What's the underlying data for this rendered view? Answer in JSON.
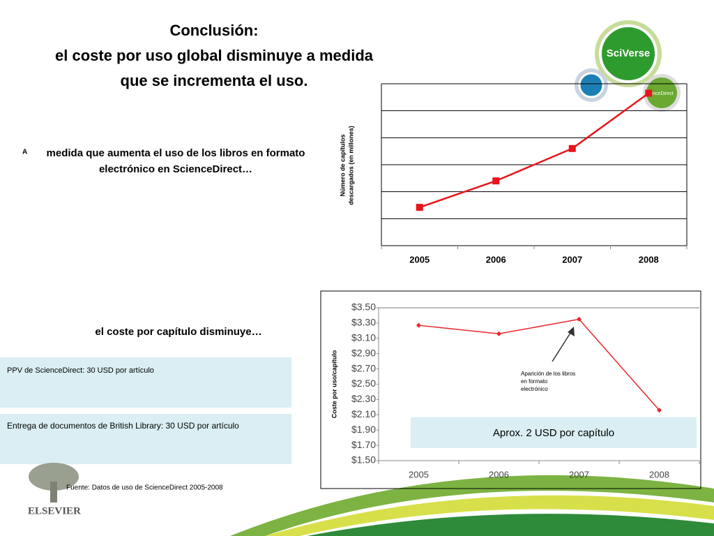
{
  "title": [
    "Conclusión:",
    "el coste por uso global disminuye a medida",
    "que se incrementa el uso."
  ],
  "intro": {
    "lead": "A",
    "lines": [
      "medida que aumenta el uso de los libros en formato",
      "electrónico en ScienceDirect…"
    ]
  },
  "subhead": "el coste por capítulo disminuye…",
  "boxes": [
    "PPV de ScienceDirect: 30 USD por artículo",
    "Entrega de documentos de British Library: 30 USD por artículo"
  ],
  "source": "Fuente: Datos de uso de ScienceDirect 2005-2008",
  "logos": {
    "sciverse": "SciVerse",
    "sciencedirect": "enceDirect",
    "elsevier": "ELSEVIER"
  },
  "chart_data": [
    {
      "type": "line",
      "ylabel": [
        "Número de capítulos",
        "descargados (en millones)"
      ],
      "categories": [
        "2005",
        "2006",
        "2007",
        "2008"
      ],
      "series": [
        {
          "color": "#e8141b",
          "values": [
            1.42,
            2.4,
            3.6,
            5.65
          ]
        }
      ],
      "ylim": [
        0,
        6
      ],
      "yticks": [
        0,
        1,
        2,
        3,
        4,
        5,
        6
      ],
      "grid": true
    },
    {
      "type": "line",
      "ylabel": "Coste por uso/capítulo",
      "categories": [
        "2005",
        "2006",
        "2007",
        "2008"
      ],
      "series": [
        {
          "color": "#e8262a",
          "values": [
            3.27,
            3.16,
            3.35,
            2.16
          ]
        }
      ],
      "ylim": [
        1.5,
        3.5
      ],
      "yticks": [
        {
          "value": 1.5,
          "label": "$1.50"
        },
        {
          "value": 1.7,
          "label": "$1.70"
        },
        {
          "value": 1.9,
          "label": "$1.90"
        },
        {
          "value": 2.1,
          "label": "$2.10"
        },
        {
          "value": 2.3,
          "label": "$2.30"
        },
        {
          "value": 2.5,
          "label": "$2.50"
        },
        {
          "value": 2.7,
          "label": "$2.70"
        },
        {
          "value": 2.9,
          "label": "$2.90"
        },
        {
          "value": 3.1,
          "label": "$3.10"
        },
        {
          "value": 3.3,
          "label": "$3.30"
        },
        {
          "value": 3.5,
          "label": "$3.50"
        }
      ],
      "grid": false,
      "annotations": [
        [
          "Aparición de los libros",
          "en formato",
          "electrónico"
        ],
        "Aprox. 2 USD por capítulo"
      ]
    }
  ]
}
